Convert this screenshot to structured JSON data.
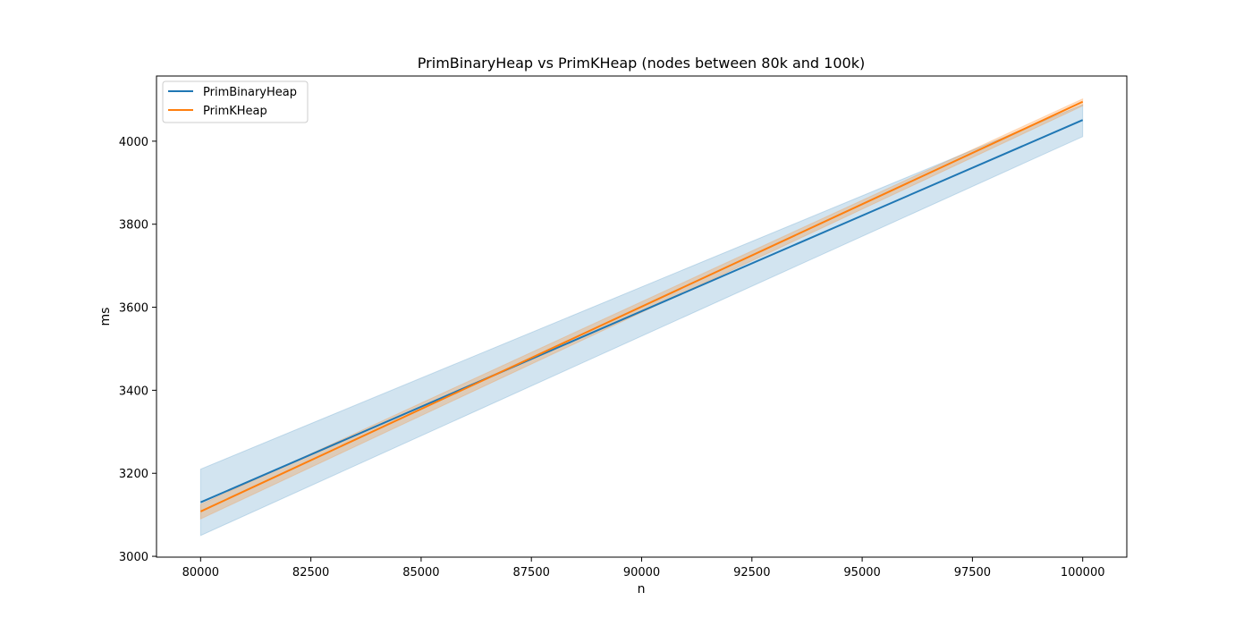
{
  "chart_data": {
    "type": "line",
    "title": "PrimBinaryHeap vs PrimKHeap (nodes between 80k and 100k)",
    "xlabel": "n",
    "ylabel": "ms",
    "xlim": [
      79000,
      101000
    ],
    "ylim": [
      2998,
      4157
    ],
    "xticks": [
      80000,
      82500,
      85000,
      87500,
      90000,
      92500,
      95000,
      97500,
      100000
    ],
    "yticks": [
      3000,
      3200,
      3400,
      3600,
      3800,
      4000
    ],
    "grid": false,
    "legend_position": "top-left",
    "series": [
      {
        "name": "PrimBinaryHeap",
        "color": "#1f77b4",
        "x": [
          80000,
          100000
        ],
        "y": [
          3130,
          4051
        ],
        "band_lower": [
          3050,
          4011
        ],
        "band_upper": [
          3210,
          4088
        ]
      },
      {
        "name": "PrimKHeap",
        "color": "#ff7f0e",
        "x": [
          80000,
          100000
        ],
        "y": [
          3108,
          4095
        ],
        "band_lower": [
          3090,
          4085
        ],
        "band_upper": [
          3125,
          4102
        ]
      }
    ]
  }
}
